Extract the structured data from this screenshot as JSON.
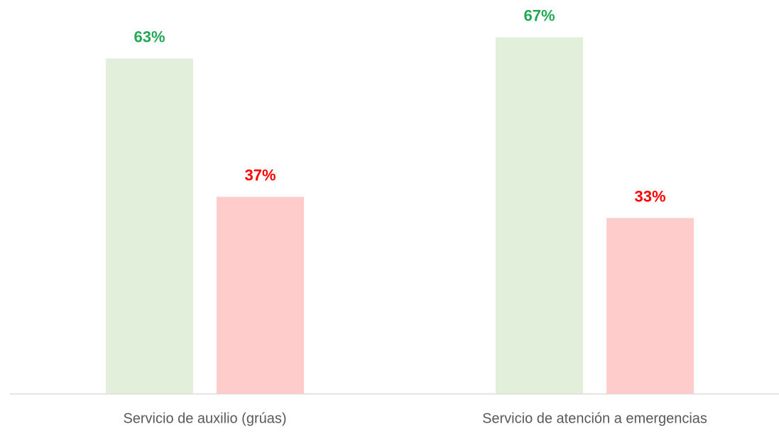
{
  "chart_data": {
    "type": "bar",
    "categories": [
      "Servicio de auxilio (grúas)",
      "Servicio de atención a emergencias"
    ],
    "series": [
      {
        "color": "#e2efda",
        "label_color": "#22a855",
        "values": [
          63,
          67
        ],
        "value_labels": [
          "63%",
          "67%"
        ]
      },
      {
        "color": "#ffcccc",
        "label_color": "#ff0000",
        "values": [
          37,
          33
        ],
        "value_labels": [
          "37%",
          "33%"
        ]
      }
    ],
    "ylim": [
      0,
      74
    ]
  }
}
